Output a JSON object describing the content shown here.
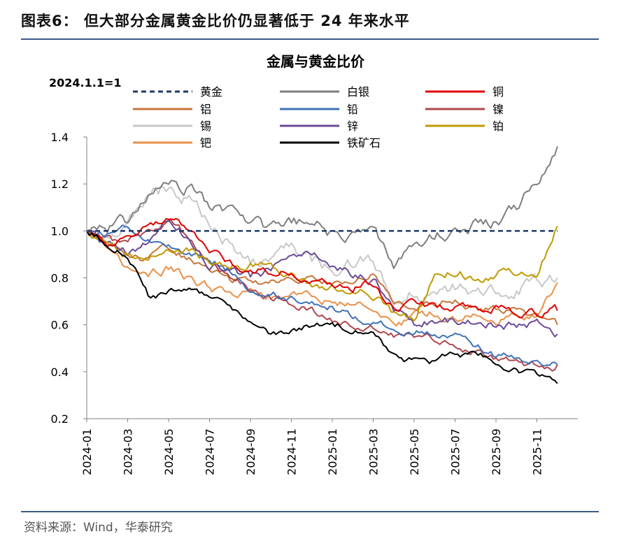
{
  "figure": {
    "title": "图表6：  但大部分金属黄金比价仍显著低于 24 年来水平",
    "source": "资料来源：Wind，华泰研究"
  },
  "colors": {
    "gold": "#1f3a68",
    "silver": "#7f7f7f",
    "copper": "#e00000",
    "aluminum": "#c8763a",
    "lead": "#3f72b8",
    "nickel": "#b0474e",
    "tin": "#c8c8c8",
    "zinc": "#6a4c98",
    "platinum": "#c09a00",
    "palladium": "#e8914a",
    "ironore": "#000000",
    "axis": "#808080",
    "rule": "#3a5a86"
  },
  "chart_data": {
    "type": "line",
    "title": "金属与黄金比价",
    "base_note": "2024.1.1=1",
    "xlabel": "",
    "ylabel": "",
    "x_range": [
      "2024-01-01",
      "2025-12-31"
    ],
    "x_ticks": [
      "2024-01",
      "2024-03",
      "2024-05",
      "2024-07",
      "2024-09",
      "2024-11",
      "2025-01",
      "2025-03",
      "2025-05",
      "2025-07",
      "2025-09",
      "2025-11"
    ],
    "ylim": [
      0.2,
      1.4
    ],
    "y_ticks": [
      "0.2",
      "0.4",
      "0.6",
      "0.8",
      "1.0",
      "1.2",
      "1.4"
    ],
    "grid": false,
    "legend_position": "top",
    "series": [
      {
        "key": "gold",
        "name": "黄金",
        "dashed": true,
        "seed": 1,
        "vol": 0,
        "points": [
          [
            0,
            1.0
          ],
          [
            23,
            1.0
          ]
        ]
      },
      {
        "key": "silver",
        "name": "白银",
        "seed": 2,
        "vol": 0.022,
        "points": [
          [
            0,
            1.0
          ],
          [
            1,
            0.99
          ],
          [
            2,
            1.04
          ],
          [
            3,
            1.13
          ],
          [
            4,
            1.18
          ],
          [
            5,
            1.19
          ],
          [
            6,
            1.1
          ],
          [
            7,
            1.08
          ],
          [
            8,
            1.02
          ],
          [
            9,
            1.0
          ],
          [
            10,
            1.02
          ],
          [
            11,
            1.03
          ],
          [
            12,
            0.99
          ],
          [
            13,
            0.96
          ],
          [
            14,
            0.97
          ],
          [
            15,
            0.86
          ],
          [
            16,
            0.94
          ],
          [
            17,
            0.99
          ],
          [
            18,
            0.98
          ],
          [
            19,
            1.02
          ],
          [
            20,
            1.04
          ],
          [
            21,
            1.1
          ],
          [
            22,
            1.2
          ],
          [
            23,
            1.36
          ]
        ]
      },
      {
        "key": "copper",
        "name": "铜",
        "seed": 3,
        "vol": 0.014,
        "points": [
          [
            0,
            1.0
          ],
          [
            1,
            0.95
          ],
          [
            2,
            0.97
          ],
          [
            3,
            1.0
          ],
          [
            4,
            1.05
          ],
          [
            5,
            1.02
          ],
          [
            6,
            0.92
          ],
          [
            7,
            0.86
          ],
          [
            8,
            0.84
          ],
          [
            9,
            0.83
          ],
          [
            10,
            0.82
          ],
          [
            11,
            0.81
          ],
          [
            12,
            0.79
          ],
          [
            13,
            0.77
          ],
          [
            14,
            0.78
          ],
          [
            15,
            0.66
          ],
          [
            16,
            0.68
          ],
          [
            17,
            0.67
          ],
          [
            18,
            0.67
          ],
          [
            19,
            0.66
          ],
          [
            20,
            0.68
          ],
          [
            21,
            0.66
          ],
          [
            22,
            0.65
          ],
          [
            23,
            0.66
          ]
        ]
      },
      {
        "key": "aluminum",
        "name": "铝",
        "seed": 4,
        "vol": 0.013,
        "points": [
          [
            0,
            1.0
          ],
          [
            1,
            0.95
          ],
          [
            2,
            0.88
          ],
          [
            3,
            0.87
          ],
          [
            4,
            0.92
          ],
          [
            5,
            0.88
          ],
          [
            6,
            0.82
          ],
          [
            7,
            0.79
          ],
          [
            8,
            0.78
          ],
          [
            9,
            0.78
          ],
          [
            10,
            0.8
          ],
          [
            11,
            0.8
          ],
          [
            12,
            0.79
          ],
          [
            13,
            0.81
          ],
          [
            14,
            0.83
          ],
          [
            15,
            0.7
          ],
          [
            16,
            0.68
          ],
          [
            17,
            0.69
          ],
          [
            18,
            0.7
          ],
          [
            19,
            0.67
          ],
          [
            20,
            0.66
          ],
          [
            21,
            0.66
          ],
          [
            22,
            0.63
          ],
          [
            23,
            0.6
          ]
        ]
      },
      {
        "key": "lead",
        "name": "铅",
        "seed": 5,
        "vol": 0.014,
        "points": [
          [
            0,
            1.0
          ],
          [
            1,
            0.99
          ],
          [
            2,
            1.03
          ],
          [
            3,
            0.98
          ],
          [
            4,
            0.93
          ],
          [
            5,
            0.92
          ],
          [
            6,
            0.89
          ],
          [
            7,
            0.84
          ],
          [
            8,
            0.76
          ],
          [
            9,
            0.74
          ],
          [
            10,
            0.72
          ],
          [
            11,
            0.7
          ],
          [
            12,
            0.67
          ],
          [
            13,
            0.64
          ],
          [
            14,
            0.62
          ],
          [
            15,
            0.57
          ],
          [
            16,
            0.58
          ],
          [
            17,
            0.56
          ],
          [
            18,
            0.54
          ],
          [
            19,
            0.5
          ],
          [
            20,
            0.47
          ],
          [
            21,
            0.46
          ],
          [
            22,
            0.45
          ],
          [
            23,
            0.43
          ]
        ]
      },
      {
        "key": "nickel",
        "name": "镍",
        "seed": 6,
        "vol": 0.014,
        "points": [
          [
            0,
            1.0
          ],
          [
            1,
            0.96
          ],
          [
            2,
            0.94
          ],
          [
            3,
            1.0
          ],
          [
            4,
            1.03
          ],
          [
            5,
            0.97
          ],
          [
            6,
            0.86
          ],
          [
            7,
            0.8
          ],
          [
            8,
            0.76
          ],
          [
            9,
            0.72
          ],
          [
            10,
            0.7
          ],
          [
            11,
            0.66
          ],
          [
            12,
            0.63
          ],
          [
            13,
            0.61
          ],
          [
            14,
            0.6
          ],
          [
            15,
            0.55
          ],
          [
            16,
            0.54
          ],
          [
            17,
            0.54
          ],
          [
            18,
            0.53
          ],
          [
            19,
            0.49
          ],
          [
            20,
            0.46
          ],
          [
            21,
            0.44
          ],
          [
            22,
            0.43
          ],
          [
            23,
            0.43
          ]
        ]
      },
      {
        "key": "tin",
        "name": "锡",
        "seed": 7,
        "vol": 0.024,
        "points": [
          [
            0,
            1.0
          ],
          [
            1,
            0.96
          ],
          [
            2,
            1.02
          ],
          [
            3,
            1.15
          ],
          [
            4,
            1.19
          ],
          [
            5,
            1.14
          ],
          [
            6,
            1.02
          ],
          [
            7,
            0.95
          ],
          [
            8,
            0.86
          ],
          [
            9,
            0.9
          ],
          [
            10,
            0.92
          ],
          [
            11,
            0.88
          ],
          [
            12,
            0.84
          ],
          [
            13,
            0.86
          ],
          [
            14,
            0.87
          ],
          [
            15,
            0.7
          ],
          [
            16,
            0.74
          ],
          [
            17,
            0.72
          ],
          [
            18,
            0.75
          ],
          [
            19,
            0.74
          ],
          [
            20,
            0.76
          ],
          [
            21,
            0.76
          ],
          [
            22,
            0.78
          ],
          [
            23,
            0.8
          ]
        ]
      },
      {
        "key": "zinc",
        "name": "锌",
        "seed": 8,
        "vol": 0.016,
        "points": [
          [
            0,
            1.0
          ],
          [
            1,
            0.95
          ],
          [
            2,
            0.91
          ],
          [
            3,
            0.96
          ],
          [
            4,
            1.04
          ],
          [
            5,
            0.97
          ],
          [
            6,
            0.86
          ],
          [
            7,
            0.84
          ],
          [
            8,
            0.8
          ],
          [
            9,
            0.84
          ],
          [
            10,
            0.9
          ],
          [
            11,
            0.92
          ],
          [
            12,
            0.86
          ],
          [
            13,
            0.81
          ],
          [
            14,
            0.8
          ],
          [
            15,
            0.65
          ],
          [
            16,
            0.6
          ],
          [
            17,
            0.62
          ],
          [
            18,
            0.62
          ],
          [
            19,
            0.61
          ],
          [
            20,
            0.6
          ],
          [
            21,
            0.6
          ],
          [
            22,
            0.6
          ],
          [
            23,
            0.56
          ]
        ]
      },
      {
        "key": "platinum",
        "name": "铂",
        "seed": 9,
        "vol": 0.016,
        "points": [
          [
            0,
            1.0
          ],
          [
            1,
            0.96
          ],
          [
            2,
            0.91
          ],
          [
            3,
            0.89
          ],
          [
            4,
            0.93
          ],
          [
            5,
            0.93
          ],
          [
            6,
            0.86
          ],
          [
            7,
            0.82
          ],
          [
            8,
            0.85
          ],
          [
            9,
            0.85
          ],
          [
            10,
            0.8
          ],
          [
            11,
            0.76
          ],
          [
            12,
            0.75
          ],
          [
            13,
            0.77
          ],
          [
            14,
            0.74
          ],
          [
            15,
            0.65
          ],
          [
            16,
            0.64
          ],
          [
            17,
            0.82
          ],
          [
            18,
            0.83
          ],
          [
            19,
            0.8
          ],
          [
            20,
            0.82
          ],
          [
            21,
            0.83
          ],
          [
            22,
            0.8
          ],
          [
            23,
            1.02
          ]
        ]
      },
      {
        "key": "palladium",
        "name": "钯",
        "seed": 10,
        "vol": 0.015,
        "points": [
          [
            0,
            1.0
          ],
          [
            1,
            0.93
          ],
          [
            2,
            0.84
          ],
          [
            3,
            0.8
          ],
          [
            4,
            0.84
          ],
          [
            5,
            0.8
          ],
          [
            6,
            0.76
          ],
          [
            7,
            0.73
          ],
          [
            8,
            0.74
          ],
          [
            9,
            0.72
          ],
          [
            10,
            0.76
          ],
          [
            11,
            0.72
          ],
          [
            12,
            0.7
          ],
          [
            13,
            0.7
          ],
          [
            14,
            0.66
          ],
          [
            15,
            0.61
          ],
          [
            16,
            0.63
          ],
          [
            17,
            0.65
          ],
          [
            18,
            0.63
          ],
          [
            19,
            0.64
          ],
          [
            20,
            0.63
          ],
          [
            21,
            0.63
          ],
          [
            22,
            0.65
          ],
          [
            23,
            0.78
          ]
        ]
      },
      {
        "key": "ironore",
        "name": "铁矿石",
        "seed": 11,
        "vol": 0.013,
        "points": [
          [
            0,
            1.0
          ],
          [
            1,
            0.95
          ],
          [
            2,
            0.91
          ],
          [
            3,
            0.72
          ],
          [
            4,
            0.74
          ],
          [
            5,
            0.78
          ],
          [
            6,
            0.72
          ],
          [
            7,
            0.66
          ],
          [
            8,
            0.6
          ],
          [
            9,
            0.55
          ],
          [
            10,
            0.56
          ],
          [
            11,
            0.6
          ],
          [
            12,
            0.61
          ],
          [
            13,
            0.58
          ],
          [
            14,
            0.55
          ],
          [
            15,
            0.46
          ],
          [
            16,
            0.44
          ],
          [
            17,
            0.44
          ],
          [
            18,
            0.47
          ],
          [
            19,
            0.48
          ],
          [
            20,
            0.44
          ],
          [
            21,
            0.4
          ],
          [
            22,
            0.38
          ],
          [
            23,
            0.35
          ]
        ]
      }
    ]
  }
}
